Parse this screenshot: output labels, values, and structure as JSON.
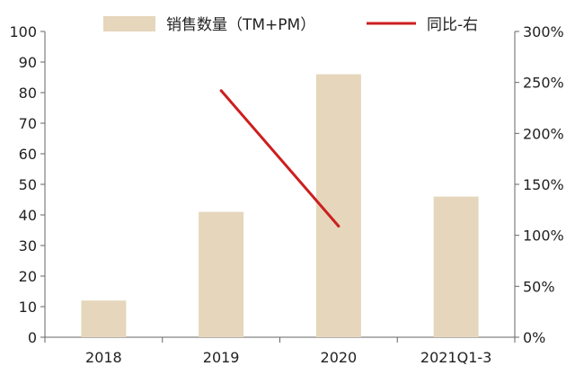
{
  "chart_data": {
    "type": "bar",
    "categories": [
      "2018",
      "2019",
      "2020",
      "2021Q1-3"
    ],
    "series": [
      {
        "name": "销售数量（TM+PM）",
        "type": "bar",
        "axis": "left",
        "color": "#e5d6bc",
        "values": [
          12,
          41,
          86,
          46
        ]
      },
      {
        "name": "同比-右",
        "type": "line",
        "axis": "right",
        "color": "#cc1f1f",
        "values": [
          null,
          242,
          109,
          null
        ]
      }
    ],
    "y_left": {
      "ylim": [
        0,
        100
      ],
      "ticks": [
        "0",
        "10",
        "20",
        "30",
        "40",
        "50",
        "60",
        "70",
        "80",
        "90",
        "100"
      ]
    },
    "y_right": {
      "ylim": [
        0,
        300
      ],
      "ticks": [
        "0%",
        "50%",
        "100%",
        "150%",
        "200%",
        "250%",
        "300%"
      ]
    },
    "legend_position": "top",
    "grid": false
  }
}
